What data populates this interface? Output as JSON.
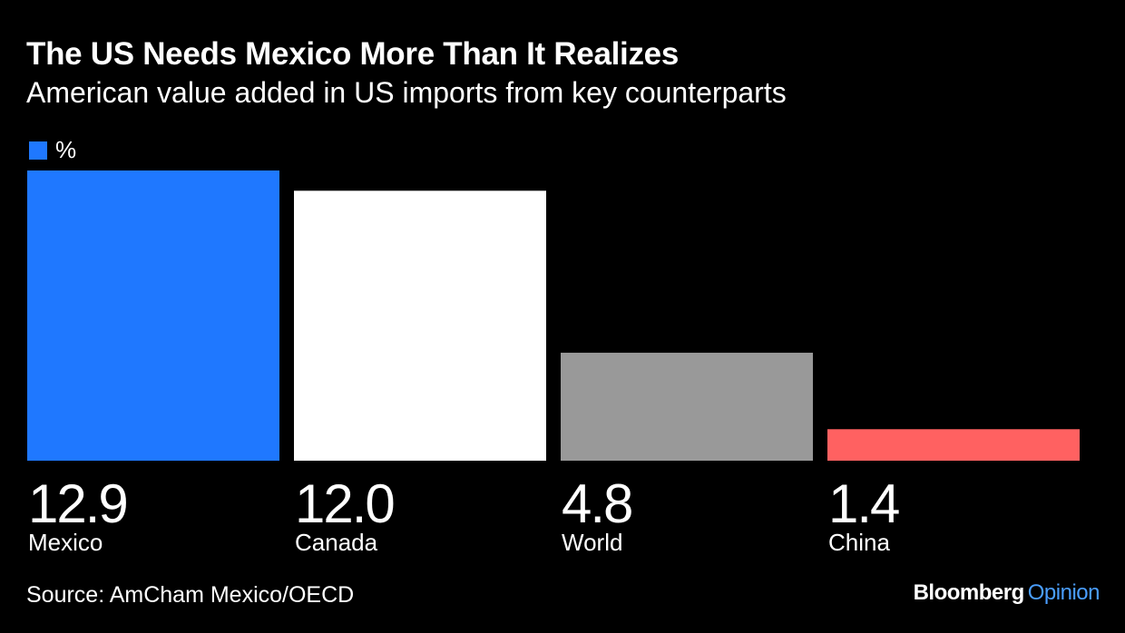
{
  "header": {
    "title": "The US Needs Mexico More Than It Realizes",
    "subtitle": "American value added in US imports from key counterparts"
  },
  "legend": {
    "label": "%",
    "color": "#1f78ff"
  },
  "chart_data": {
    "type": "bar",
    "title": "The US Needs Mexico More Than It Realizes",
    "subtitle": "American value added in US imports from key counterparts",
    "categories": [
      "Mexico",
      "Canada",
      "World",
      "China"
    ],
    "value_labels": [
      "12.9",
      "12.0",
      "4.8",
      "1.4"
    ],
    "series": [
      {
        "name": "%",
        "values": [
          12.9,
          12.0,
          4.8,
          1.4
        ]
      }
    ],
    "colors": [
      "#1f78ff",
      "#ffffff",
      "#999999",
      "#ff6161"
    ],
    "ylim": [
      0,
      12.9
    ],
    "grid": false,
    "legend": "top-left",
    "xlabel": "",
    "ylabel": ""
  },
  "footer": {
    "source": "Source: AmCham Mexico/OECD",
    "brand_name": "Bloomberg",
    "brand_opinion": "Opinion",
    "brand_accent": "#4a9eff"
  }
}
